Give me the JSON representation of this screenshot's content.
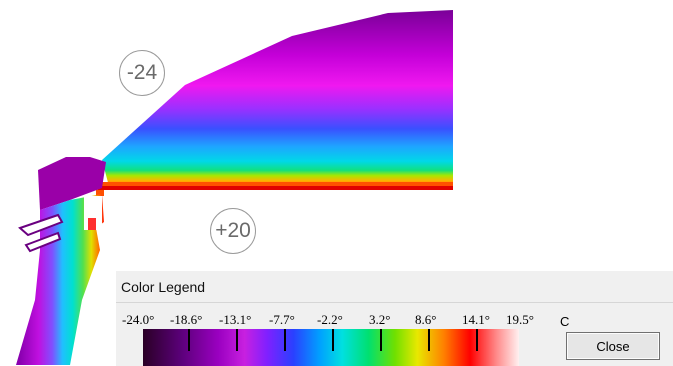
{
  "markers": {
    "outside_temp": "-24",
    "inside_temp": "+20"
  },
  "legend": {
    "title": "Color Legend",
    "ticks": [
      "-24.0°",
      "-18.6°",
      "-13.1°",
      "-7.7°",
      "-2.2°",
      "3.2°",
      "8.6°",
      "14.1°",
      "19.5°"
    ],
    "unit": "C",
    "close_label": "Close"
  }
}
